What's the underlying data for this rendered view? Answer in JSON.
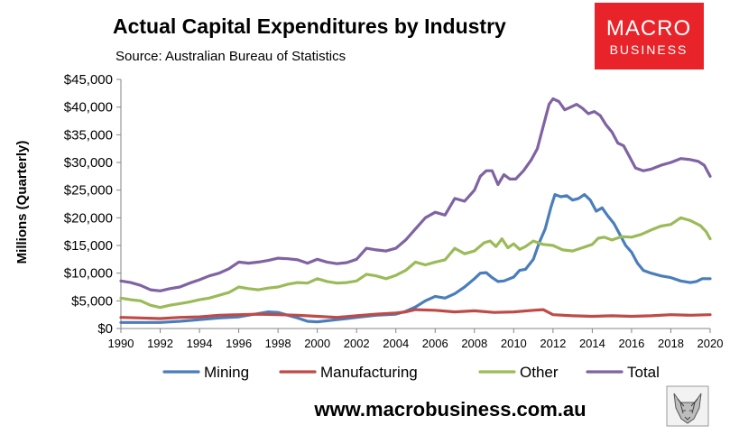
{
  "brand": {
    "logo_line1": "MACRO",
    "logo_line2": "BUSINESS",
    "logo_color": "#e8242a",
    "website": "www.macrobusiness.com.au",
    "corner_icon": "wolf-head-icon"
  },
  "chart_data": {
    "type": "line",
    "title": "Actual Capital Expenditures by Industry",
    "subtitle": "Source: Australian Bureau of Statistics",
    "xlabel": "",
    "ylabel": "Millions (Quarterly)",
    "xlim": [
      1990,
      2020
    ],
    "ylim": [
      0,
      45000
    ],
    "grid": false,
    "legend_position": "bottom",
    "x_ticks": [
      1990,
      1992,
      1994,
      1996,
      1998,
      2000,
      2002,
      2004,
      2006,
      2008,
      2010,
      2012,
      2014,
      2016,
      2018,
      2020
    ],
    "x_tick_labels": [
      "1990",
      "1992",
      "1994",
      "1996",
      "1998",
      "2000",
      "2002",
      "2004",
      "2006",
      "2008",
      "2010",
      "2012",
      "2014",
      "2016",
      "2018",
      "2020"
    ],
    "y_ticks": [
      0,
      5000,
      10000,
      15000,
      20000,
      25000,
      30000,
      35000,
      40000,
      45000
    ],
    "y_tick_labels": [
      "$0",
      "$5,000",
      "$10,000",
      "$15,000",
      "$20,000",
      "$25,000",
      "$30,000",
      "$35,000",
      "$40,000",
      "$45,000"
    ],
    "series": [
      {
        "name": "Mining",
        "color": "#4a7ebb",
        "points": [
          [
            1990.0,
            1100
          ],
          [
            1991.0,
            1100
          ],
          [
            1992.0,
            1100
          ],
          [
            1993.0,
            1300
          ],
          [
            1994.0,
            1600
          ],
          [
            1995.0,
            1900
          ],
          [
            1996.0,
            2100
          ],
          [
            1997.0,
            2700
          ],
          [
            1997.5,
            3000
          ],
          [
            1998.0,
            2900
          ],
          [
            1998.5,
            2400
          ],
          [
            1999.0,
            1900
          ],
          [
            1999.5,
            1300
          ],
          [
            2000.0,
            1200
          ],
          [
            2001.0,
            1600
          ],
          [
            2002.0,
            2000
          ],
          [
            2003.0,
            2400
          ],
          [
            2004.0,
            2600
          ],
          [
            2004.5,
            3100
          ],
          [
            2005.0,
            3900
          ],
          [
            2005.5,
            5000
          ],
          [
            2006.0,
            5800
          ],
          [
            2006.5,
            5500
          ],
          [
            2007.0,
            6300
          ],
          [
            2007.5,
            7500
          ],
          [
            2008.0,
            9000
          ],
          [
            2008.3,
            10000
          ],
          [
            2008.6,
            10100
          ],
          [
            2008.9,
            9200
          ],
          [
            2009.2,
            8500
          ],
          [
            2009.5,
            8600
          ],
          [
            2010.0,
            9300
          ],
          [
            2010.3,
            10500
          ],
          [
            2010.6,
            10700
          ],
          [
            2011.0,
            12500
          ],
          [
            2011.3,
            15500
          ],
          [
            2011.6,
            18000
          ],
          [
            2011.9,
            22000
          ],
          [
            2012.1,
            24200
          ],
          [
            2012.4,
            23800
          ],
          [
            2012.7,
            24000
          ],
          [
            2013.0,
            23200
          ],
          [
            2013.3,
            23500
          ],
          [
            2013.6,
            24200
          ],
          [
            2013.9,
            23200
          ],
          [
            2014.2,
            21200
          ],
          [
            2014.5,
            21800
          ],
          [
            2014.8,
            20300
          ],
          [
            2015.1,
            19000
          ],
          [
            2015.4,
            17000
          ],
          [
            2015.7,
            15000
          ],
          [
            2016.0,
            13800
          ],
          [
            2016.3,
            11800
          ],
          [
            2016.6,
            10500
          ],
          [
            2017.0,
            10000
          ],
          [
            2017.5,
            9500
          ],
          [
            2018.0,
            9200
          ],
          [
            2018.5,
            8600
          ],
          [
            2019.0,
            8300
          ],
          [
            2019.3,
            8500
          ],
          [
            2019.6,
            9000
          ],
          [
            2020.0,
            9000
          ]
        ]
      },
      {
        "name": "Manufacturing",
        "color": "#be4b48",
        "points": [
          [
            1990.0,
            2000
          ],
          [
            1991.0,
            1900
          ],
          [
            1992.0,
            1800
          ],
          [
            1993.0,
            2000
          ],
          [
            1994.0,
            2100
          ],
          [
            1995.0,
            2400
          ],
          [
            1996.0,
            2500
          ],
          [
            1997.0,
            2600
          ],
          [
            1998.0,
            2500
          ],
          [
            1999.0,
            2400
          ],
          [
            2000.0,
            2200
          ],
          [
            2001.0,
            2000
          ],
          [
            2002.0,
            2300
          ],
          [
            2003.0,
            2600
          ],
          [
            2004.0,
            2800
          ],
          [
            2004.5,
            3000
          ],
          [
            2005.0,
            3400
          ],
          [
            2006.0,
            3300
          ],
          [
            2007.0,
            3000
          ],
          [
            2008.0,
            3200
          ],
          [
            2009.0,
            2900
          ],
          [
            2010.0,
            3000
          ],
          [
            2011.0,
            3300
          ],
          [
            2011.5,
            3400
          ],
          [
            2012.0,
            2500
          ],
          [
            2013.0,
            2300
          ],
          [
            2014.0,
            2200
          ],
          [
            2015.0,
            2300
          ],
          [
            2016.0,
            2200
          ],
          [
            2017.0,
            2300
          ],
          [
            2018.0,
            2500
          ],
          [
            2019.0,
            2400
          ],
          [
            2020.0,
            2500
          ]
        ]
      },
      {
        "name": "Other",
        "color": "#9bbb59",
        "points": [
          [
            1990.0,
            5500
          ],
          [
            1990.5,
            5200
          ],
          [
            1991.0,
            5000
          ],
          [
            1991.5,
            4200
          ],
          [
            1992.0,
            3800
          ],
          [
            1992.5,
            4200
          ],
          [
            1993.0,
            4500
          ],
          [
            1993.5,
            4800
          ],
          [
            1994.0,
            5200
          ],
          [
            1994.5,
            5500
          ],
          [
            1995.0,
            6000
          ],
          [
            1995.5,
            6500
          ],
          [
            1996.0,
            7500
          ],
          [
            1996.5,
            7200
          ],
          [
            1997.0,
            7000
          ],
          [
            1997.5,
            7300
          ],
          [
            1998.0,
            7500
          ],
          [
            1998.5,
            8000
          ],
          [
            1999.0,
            8300
          ],
          [
            1999.5,
            8200
          ],
          [
            2000.0,
            9000
          ],
          [
            2000.5,
            8500
          ],
          [
            2001.0,
            8200
          ],
          [
            2001.5,
            8300
          ],
          [
            2002.0,
            8600
          ],
          [
            2002.5,
            9800
          ],
          [
            2003.0,
            9500
          ],
          [
            2003.5,
            9000
          ],
          [
            2004.0,
            9600
          ],
          [
            2004.5,
            10500
          ],
          [
            2005.0,
            12000
          ],
          [
            2005.5,
            11500
          ],
          [
            2006.0,
            12000
          ],
          [
            2006.5,
            12400
          ],
          [
            2007.0,
            14500
          ],
          [
            2007.5,
            13500
          ],
          [
            2008.0,
            14000
          ],
          [
            2008.5,
            15500
          ],
          [
            2008.8,
            15800
          ],
          [
            2009.1,
            14800
          ],
          [
            2009.4,
            16200
          ],
          [
            2009.7,
            14600
          ],
          [
            2010.0,
            15300
          ],
          [
            2010.3,
            14300
          ],
          [
            2010.6,
            14800
          ],
          [
            2011.0,
            15800
          ],
          [
            2011.5,
            15200
          ],
          [
            2012.0,
            15000
          ],
          [
            2012.5,
            14200
          ],
          [
            2013.0,
            14000
          ],
          [
            2013.5,
            14600
          ],
          [
            2014.0,
            15200
          ],
          [
            2014.3,
            16300
          ],
          [
            2014.6,
            16500
          ],
          [
            2015.0,
            16000
          ],
          [
            2015.5,
            16600
          ],
          [
            2016.0,
            16500
          ],
          [
            2016.5,
            17000
          ],
          [
            2017.0,
            17800
          ],
          [
            2017.5,
            18500
          ],
          [
            2018.0,
            18800
          ],
          [
            2018.5,
            20000
          ],
          [
            2019.0,
            19500
          ],
          [
            2019.5,
            18600
          ],
          [
            2019.8,
            17500
          ],
          [
            2020.0,
            16200
          ]
        ]
      },
      {
        "name": "Total",
        "color": "#7f63a2",
        "points": [
          [
            1990.0,
            8600
          ],
          [
            1990.5,
            8300
          ],
          [
            1991.0,
            7800
          ],
          [
            1991.5,
            7000
          ],
          [
            1992.0,
            6800
          ],
          [
            1992.5,
            7200
          ],
          [
            1993.0,
            7500
          ],
          [
            1993.5,
            8200
          ],
          [
            1994.0,
            8800
          ],
          [
            1994.5,
            9500
          ],
          [
            1995.0,
            10000
          ],
          [
            1995.5,
            10800
          ],
          [
            1996.0,
            12000
          ],
          [
            1996.5,
            11800
          ],
          [
            1997.0,
            12000
          ],
          [
            1997.5,
            12300
          ],
          [
            1998.0,
            12700
          ],
          [
            1998.5,
            12600
          ],
          [
            1999.0,
            12400
          ],
          [
            1999.5,
            11800
          ],
          [
            2000.0,
            12500
          ],
          [
            2000.5,
            12000
          ],
          [
            2001.0,
            11700
          ],
          [
            2001.5,
            11900
          ],
          [
            2002.0,
            12500
          ],
          [
            2002.5,
            14500
          ],
          [
            2003.0,
            14200
          ],
          [
            2003.5,
            14000
          ],
          [
            2004.0,
            14500
          ],
          [
            2004.5,
            16000
          ],
          [
            2005.0,
            18000
          ],
          [
            2005.5,
            20000
          ],
          [
            2006.0,
            21000
          ],
          [
            2006.5,
            20500
          ],
          [
            2007.0,
            23500
          ],
          [
            2007.5,
            23000
          ],
          [
            2008.0,
            25000
          ],
          [
            2008.3,
            27500
          ],
          [
            2008.6,
            28500
          ],
          [
            2008.9,
            28500
          ],
          [
            2009.2,
            26000
          ],
          [
            2009.5,
            27800
          ],
          [
            2009.8,
            27000
          ],
          [
            2010.1,
            27000
          ],
          [
            2010.5,
            28500
          ],
          [
            2010.9,
            30500
          ],
          [
            2011.2,
            32500
          ],
          [
            2011.5,
            36500
          ],
          [
            2011.8,
            40500
          ],
          [
            2012.0,
            41500
          ],
          [
            2012.3,
            41000
          ],
          [
            2012.6,
            39500
          ],
          [
            2012.9,
            40000
          ],
          [
            2013.2,
            40500
          ],
          [
            2013.5,
            39800
          ],
          [
            2013.8,
            38800
          ],
          [
            2014.1,
            39200
          ],
          [
            2014.4,
            38500
          ],
          [
            2014.7,
            36800
          ],
          [
            2015.0,
            35500
          ],
          [
            2015.3,
            33500
          ],
          [
            2015.6,
            33000
          ],
          [
            2015.9,
            31000
          ],
          [
            2016.2,
            29000
          ],
          [
            2016.6,
            28500
          ],
          [
            2017.0,
            28800
          ],
          [
            2017.5,
            29500
          ],
          [
            2018.0,
            30000
          ],
          [
            2018.5,
            30700
          ],
          [
            2019.0,
            30500
          ],
          [
            2019.4,
            30200
          ],
          [
            2019.7,
            29500
          ],
          [
            2020.0,
            27500
          ]
        ]
      }
    ]
  }
}
